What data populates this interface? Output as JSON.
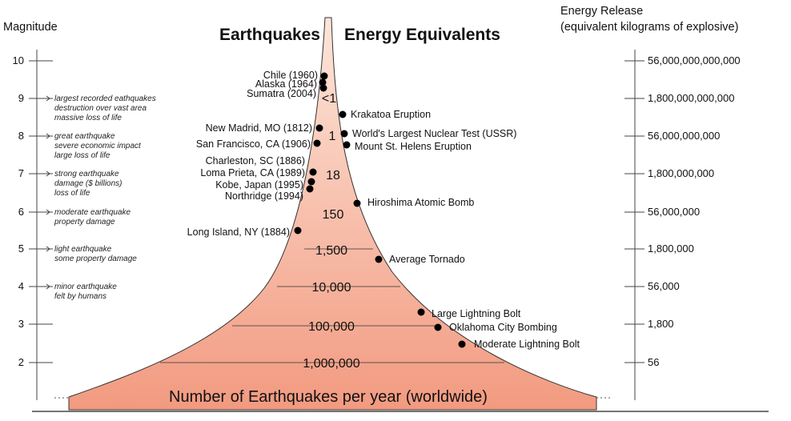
{
  "titles": {
    "left": "Earthquakes",
    "right": "Energy Equivalents"
  },
  "left_axis": {
    "title": "Magnitude",
    "ticks": [
      "10",
      "9",
      "8",
      "7",
      "6",
      "5",
      "4",
      "3",
      "2"
    ]
  },
  "right_axis": {
    "title_line1": "Energy Release",
    "title_line2": "(equivalent kilograms of explosive)",
    "ticks": [
      "56,000,000,000,000",
      "1,800,000,000,000",
      "56,000,000,000",
      "1,800,000,000",
      "56,000,000",
      "1,800,000",
      "56,000",
      "1,800",
      "56"
    ]
  },
  "descriptions": [
    {
      "magnitude": "9",
      "lines": [
        "largest recorded eathquakes",
        "destruction over vast area",
        "massive loss of life"
      ]
    },
    {
      "magnitude": "8",
      "lines": [
        "great earthquake",
        "severe economic impact",
        "large loss of life"
      ]
    },
    {
      "magnitude": "7",
      "lines": [
        "strong earthquake",
        "damage ($ billions)",
        "loss of life"
      ]
    },
    {
      "magnitude": "6",
      "lines": [
        "moderate earthquake",
        "property damage"
      ]
    },
    {
      "magnitude": "5",
      "lines": [
        "light earthquake",
        "some property damage"
      ]
    },
    {
      "magnitude": "4",
      "lines": [
        "minor earthquake",
        "felt by humans"
      ]
    }
  ],
  "frequency_labels": [
    "<1",
    "1",
    "18",
    "150",
    "1,500",
    "10,000",
    "100,000",
    "1,000,000"
  ],
  "earthquakes": [
    "Chile (1960)",
    "Alaska (1964)",
    "Sumatra (2004)",
    "New Madrid, MO (1812)",
    "San Francisco, CA (1906)",
    "Charleston, SC (1886)",
    "Loma Prieta, CA (1989)",
    "Kobe, Japan (1995)",
    "Northridge (1994)",
    "Long Island, NY (1884)"
  ],
  "energy_events": [
    "Krakatoa Eruption",
    "World's Largest Nuclear Test (USSR)",
    "Mount St. Helens Eruption",
    "Hiroshima Atomic Bomb",
    "Average Tornado",
    "Large Lightning Bolt",
    "Oklahoma City Bombing",
    "Moderate Lightning Bolt"
  ],
  "bottom_label": "Number of Earthquakes per year (worldwide)",
  "colors": {
    "fill_top": "#fde3d6",
    "fill_bottom": "#f29a80",
    "outline": "#333333",
    "dot": "#000000"
  }
}
